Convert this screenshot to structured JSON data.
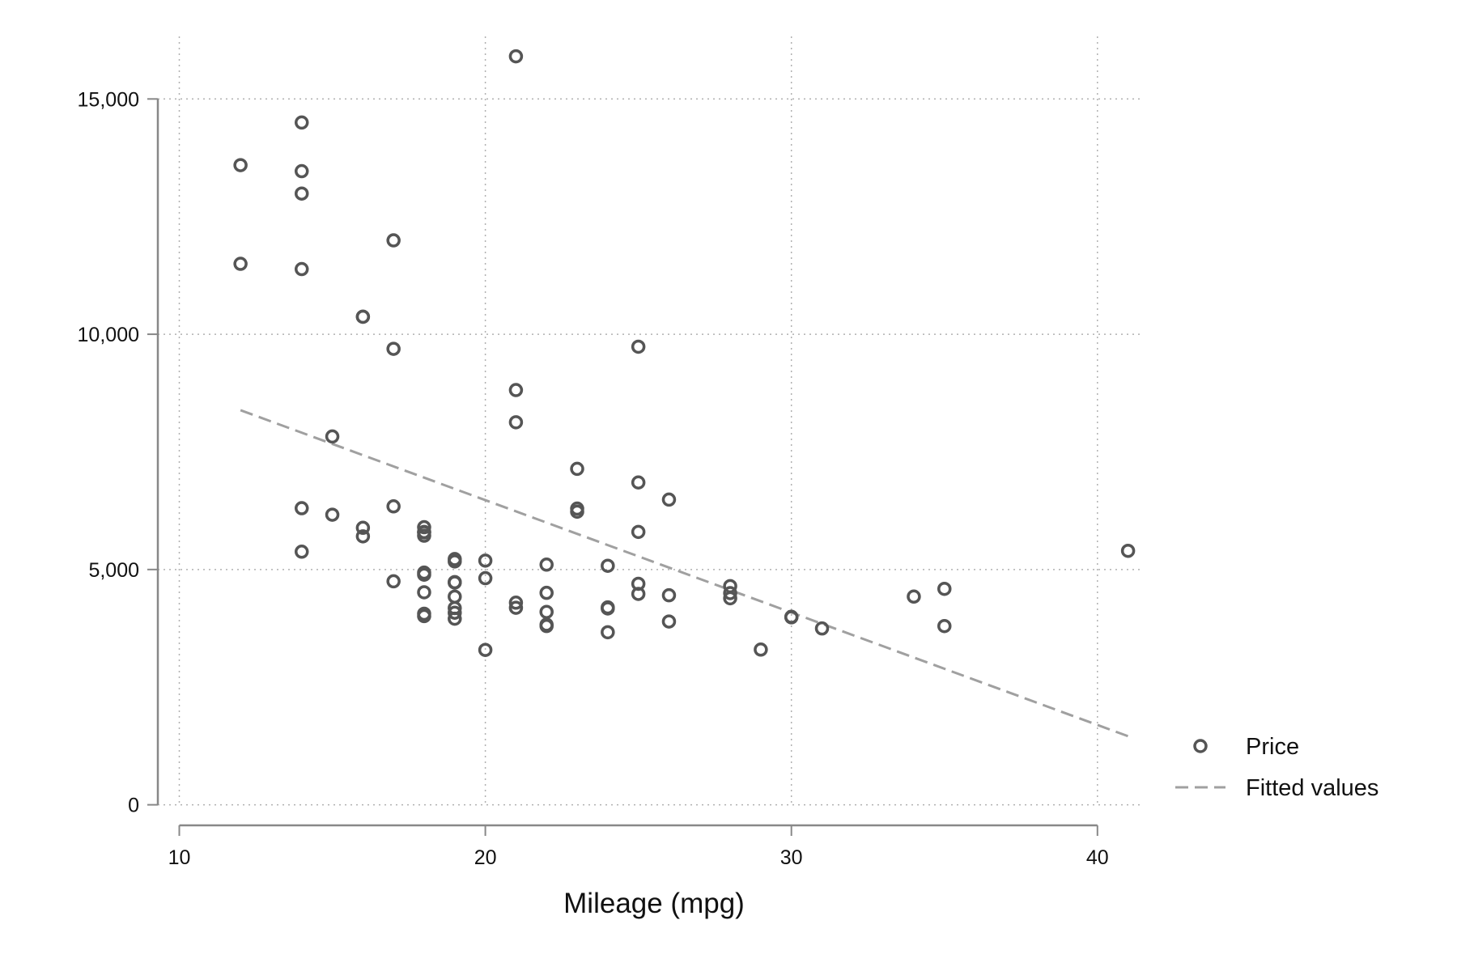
{
  "chart_data": {
    "type": "scatter",
    "title": "",
    "xlabel": "Mileage (mpg)",
    "ylabel": "",
    "xlim": [
      10,
      41
    ],
    "ylim": [
      0,
      15906
    ],
    "xticks": [
      10,
      20,
      30,
      40
    ],
    "xtick_labels": [
      "10",
      "20",
      "30",
      "40"
    ],
    "yticks": [
      0,
      5000,
      10000,
      15000
    ],
    "ytick_labels": [
      "0",
      "5,000",
      "10,000",
      "15,000"
    ],
    "grid": true,
    "legend": {
      "placement": "right",
      "entries": [
        "Price",
        "Fitted values"
      ]
    },
    "colors": {
      "points": "#555555",
      "fit": "#a0a0a0",
      "grid": "#b0b0b0",
      "axis": "#888888"
    },
    "series": [
      {
        "name": "Price",
        "type": "scatter",
        "x": [
          22,
          17,
          22,
          20,
          15,
          18,
          26,
          20,
          16,
          19,
          14,
          14,
          21,
          29,
          16,
          22,
          22,
          24,
          19,
          30,
          18,
          16,
          17,
          28,
          21,
          12,
          12,
          14,
          22,
          14,
          15,
          18,
          14,
          20,
          21,
          19,
          19,
          18,
          19,
          24,
          16,
          28,
          34,
          25,
          26,
          18,
          18,
          18,
          19,
          19,
          19,
          24,
          17,
          23,
          25,
          23,
          35,
          24,
          21,
          21,
          25,
          28,
          30,
          14,
          26,
          35,
          18,
          31,
          18,
          23,
          41,
          25,
          25,
          17
        ],
        "y": [
          4099,
          4749,
          3799,
          4816,
          7827,
          5788,
          4453,
          5189,
          10372,
          4082,
          11385,
          14500,
          15906,
          3299,
          5705,
          4504,
          5104,
          3667,
          3955,
          3984,
          4010,
          5886,
          6342,
          4389,
          4187,
          11497,
          13594,
          13466,
          3829,
          5379,
          6165,
          4516,
          6303,
          3291,
          8814,
          5172,
          4733,
          4890,
          4181,
          4195,
          10371,
          4647,
          4425,
          4482,
          6486,
          4060,
          5798,
          4934,
          5222,
          4723,
          4424,
          4172,
          9690,
          6295,
          9735,
          6229,
          4589,
          5079,
          8129,
          4296,
          5799,
          4499,
          3995,
          12990,
          3895,
          3798,
          5899,
          3748,
          5719,
          7140,
          5397,
          4697,
          6850,
          11995
        ]
      },
      {
        "name": "Fitted values",
        "type": "line",
        "x": [
          12,
          41
        ],
        "y": [
          8386,
          1458
        ]
      }
    ]
  }
}
